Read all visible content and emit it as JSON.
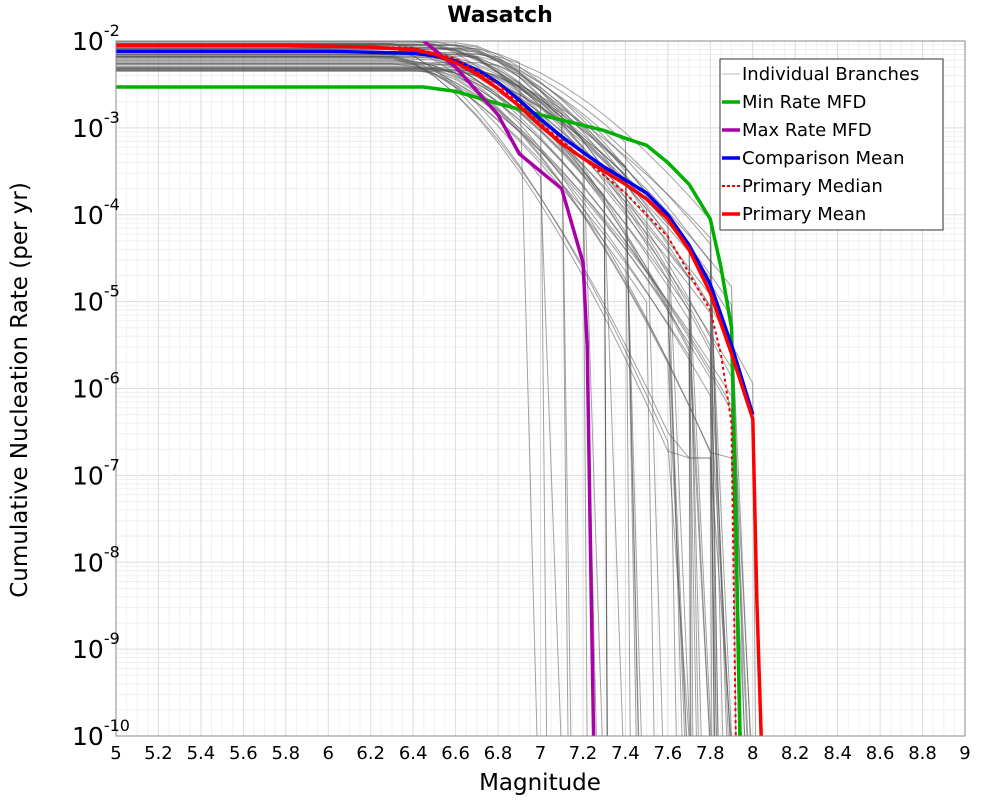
{
  "chart_data": {
    "type": "line",
    "title": "Wasatch",
    "xlabel": "Magnitude",
    "ylabel": "Cumulative Nucleation Rate (per yr)",
    "xlim": [
      5,
      9
    ],
    "ylim_log10": [
      -10,
      -2
    ],
    "yscale": "log",
    "grid": true,
    "legend_position": "top-right",
    "x_ticks": [
      "5",
      "5.2",
      "5.4",
      "5.6",
      "5.8",
      "6",
      "6.2",
      "6.4",
      "6.6",
      "6.8",
      "7",
      "7.2",
      "7.4",
      "7.6",
      "7.8",
      "8",
      "8.2",
      "8.4",
      "8.6",
      "8.8",
      "9"
    ],
    "y_ticks": [
      {
        "base": "10",
        "exp": "-2"
      },
      {
        "base": "10",
        "exp": "-3"
      },
      {
        "base": "10",
        "exp": "-4"
      },
      {
        "base": "10",
        "exp": "-5"
      },
      {
        "base": "10",
        "exp": "-6"
      },
      {
        "base": "10",
        "exp": "-7"
      },
      {
        "base": "10",
        "exp": "-8"
      },
      {
        "base": "10",
        "exp": "-9"
      },
      {
        "base": "10",
        "exp": "-10"
      }
    ],
    "branch_count_estimate": 60,
    "branch_color": "#555555",
    "series": [
      {
        "name": "Min Rate MFD",
        "color": "#00b000",
        "style": "solid",
        "x": [
          5.0,
          6.0,
          6.45,
          6.6,
          6.8,
          7.0,
          7.2,
          7.3,
          7.4,
          7.5,
          7.6,
          7.7,
          7.8,
          7.85,
          7.9,
          7.92,
          7.94
        ],
        "log10_y": [
          -2.53,
          -2.53,
          -2.53,
          -2.58,
          -2.72,
          -2.85,
          -2.97,
          -3.03,
          -3.12,
          -3.2,
          -3.4,
          -3.65,
          -4.05,
          -4.6,
          -5.3,
          -7.5,
          -10.0
        ]
      },
      {
        "name": "Max Rate MFD",
        "color": "#aa00aa",
        "style": "solid",
        "x": [
          6.45,
          6.6,
          6.8,
          6.9,
          7.0,
          7.1,
          7.2,
          7.22,
          7.24,
          7.25
        ],
        "log10_y": [
          -2.0,
          -2.3,
          -2.85,
          -3.3,
          -3.5,
          -3.7,
          -4.55,
          -5.5,
          -8.5,
          -10.0
        ]
      },
      {
        "name": "Comparison Mean",
        "color": "#0000ee",
        "style": "solid",
        "x": [
          5.0,
          5.2,
          5.4,
          5.6,
          5.8,
          6.0,
          6.2,
          6.4,
          6.5,
          6.6,
          6.7,
          6.8,
          6.9,
          7.0,
          7.1,
          7.2,
          7.3,
          7.4,
          7.5,
          7.6,
          7.7,
          7.8,
          7.9,
          8.0
        ],
        "log10_y": [
          -2.12,
          -2.12,
          -2.12,
          -2.12,
          -2.12,
          -2.12,
          -2.13,
          -2.14,
          -2.17,
          -2.23,
          -2.33,
          -2.48,
          -2.68,
          -2.9,
          -3.1,
          -3.28,
          -3.45,
          -3.6,
          -3.75,
          -4.0,
          -4.35,
          -4.8,
          -5.5,
          -6.3
        ]
      },
      {
        "name": "Primary Median",
        "color": "#ee0000",
        "style": "dotted",
        "x": [
          5.0,
          6.0,
          6.4,
          6.6,
          6.8,
          7.0,
          7.2,
          7.4,
          7.6,
          7.8,
          7.85,
          7.9,
          7.92
        ],
        "log10_y": [
          -2.05,
          -2.05,
          -2.08,
          -2.2,
          -2.5,
          -2.95,
          -3.35,
          -3.75,
          -4.25,
          -5.1,
          -5.6,
          -6.4,
          -10.0
        ]
      },
      {
        "name": "Primary Mean",
        "color": "#ff0000",
        "style": "solid",
        "x": [
          5.0,
          5.2,
          5.4,
          5.6,
          5.8,
          6.0,
          6.2,
          6.4,
          6.5,
          6.6,
          6.7,
          6.8,
          6.9,
          7.0,
          7.1,
          7.2,
          7.3,
          7.4,
          7.5,
          7.6,
          7.7,
          7.8,
          7.9,
          8.0,
          8.02,
          8.04
        ],
        "log10_y": [
          -2.05,
          -2.05,
          -2.05,
          -2.05,
          -2.05,
          -2.06,
          -2.07,
          -2.1,
          -2.15,
          -2.25,
          -2.38,
          -2.55,
          -2.75,
          -2.98,
          -3.18,
          -3.35,
          -3.5,
          -3.65,
          -3.82,
          -4.05,
          -4.4,
          -4.9,
          -5.6,
          -6.35,
          -8.5,
          -10.0
        ]
      }
    ],
    "legend": [
      {
        "label": "Individual Branches",
        "color": "#bbbbbb",
        "style": "thin"
      },
      {
        "label": "Min Rate MFD",
        "color": "#00b000",
        "style": "solid"
      },
      {
        "label": "Max Rate MFD",
        "color": "#aa00aa",
        "style": "solid"
      },
      {
        "label": "Comparison Mean",
        "color": "#0000ee",
        "style": "solid"
      },
      {
        "label": " Primary Median",
        "color": "#ee0000",
        "style": "dotted"
      },
      {
        "label": "Primary Mean",
        "color": "#ff0000",
        "style": "solid"
      }
    ]
  }
}
